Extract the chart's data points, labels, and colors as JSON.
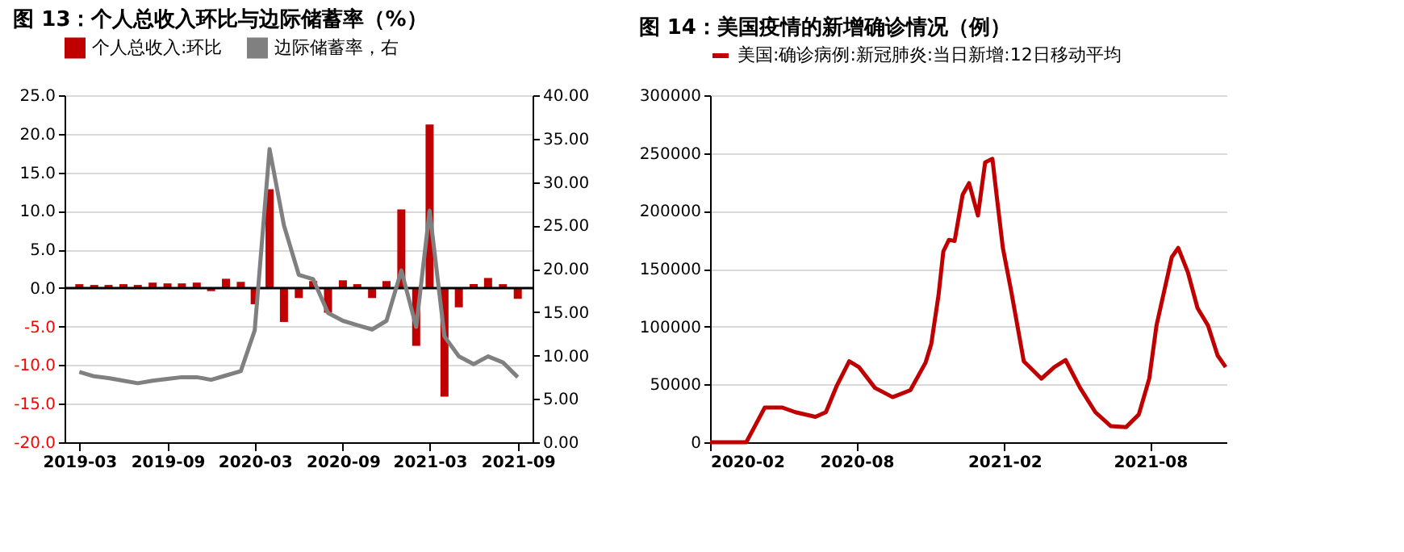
{
  "chart_data": [
    {
      "type": "bar",
      "title": "图 13：个人总收入环比与边际储蓄率（%）",
      "x": [
        "2019-03",
        "2019-04",
        "2019-05",
        "2019-06",
        "2019-07",
        "2019-08",
        "2019-09",
        "2019-10",
        "2019-11",
        "2019-12",
        "2020-01",
        "2020-02",
        "2020-03",
        "2020-04",
        "2020-05",
        "2020-06",
        "2020-07",
        "2020-08",
        "2020-09",
        "2020-10",
        "2020-11",
        "2020-12",
        "2021-01",
        "2021-02",
        "2021-03",
        "2021-04",
        "2021-05",
        "2021-06",
        "2021-07",
        "2021-08",
        "2021-09"
      ],
      "series": [
        {
          "name": "个人总收入:环比",
          "type": "bar",
          "color": "#c00000",
          "values": [
            0.5,
            0.4,
            0.4,
            0.5,
            0.4,
            0.7,
            0.6,
            0.6,
            0.7,
            -0.4,
            1.2,
            0.8,
            -2.1,
            12.8,
            -4.4,
            -1.3,
            0.9,
            -3.2,
            1.0,
            0.5,
            -1.3,
            0.9,
            10.2,
            -7.5,
            21.2,
            -14.1,
            -2.5,
            0.5,
            1.3,
            0.5,
            -1.4
          ]
        },
        {
          "name": "边际储蓄率，右",
          "type": "line",
          "axis": "y2",
          "color": "#808080",
          "values": [
            8.1,
            7.6,
            7.4,
            7.1,
            6.8,
            7.1,
            7.3,
            7.5,
            7.5,
            7.2,
            7.7,
            8.2,
            12.9,
            33.8,
            25.0,
            19.3,
            18.8,
            14.9,
            14.0,
            13.5,
            13.0,
            14.0,
            19.8,
            13.3,
            26.7,
            12.2,
            9.9,
            9.0,
            9.9,
            9.2,
            7.5
          ]
        }
      ],
      "xlim": [
        "2019-02-15",
        "2021-09-15"
      ],
      "xticks": [
        "2019-03",
        "2019-09",
        "2020-03",
        "2020-09",
        "2021-03",
        "2021-09"
      ],
      "ylim": [
        -20,
        25
      ],
      "yticks": [
        {
          "value": -20,
          "label": "-20.0"
        },
        {
          "value": -15,
          "label": "-15.0"
        },
        {
          "value": -10,
          "label": "-10.0"
        },
        {
          "value": -5,
          "label": "-5.0"
        },
        {
          "value": 0,
          "label": "0.0"
        },
        {
          "value": 5,
          "label": "5.0"
        },
        {
          "value": 10,
          "label": "10.0"
        },
        {
          "value": 15,
          "label": "15.0"
        },
        {
          "value": 20,
          "label": "20.0"
        },
        {
          "value": 25,
          "label": "25.0"
        }
      ],
      "y2lim": [
        0,
        40
      ],
      "y2ticks": [
        {
          "value": 0,
          "label": "0.00"
        },
        {
          "value": 5,
          "label": "5.00"
        },
        {
          "value": 10,
          "label": "10.00"
        },
        {
          "value": 15,
          "label": "15.00"
        },
        {
          "value": 20,
          "label": "20.00"
        },
        {
          "value": 25,
          "label": "25.00"
        },
        {
          "value": 30,
          "label": "30.00"
        },
        {
          "value": 35,
          "label": "35.00"
        },
        {
          "value": 40,
          "label": "40.00"
        }
      ],
      "ref_lines": [
        {
          "axis": "y",
          "value": 0,
          "color": "#000000"
        }
      ],
      "grid": "y",
      "legend": "top"
    },
    {
      "type": "line",
      "title": "图 14：美国疫情的新增确诊情况（例）",
      "series": [
        {
          "name": "美国:确诊病例:新冠肺炎:当日新增:12日移动平均",
          "color": "#c00000",
          "x": [
            "2020-02-01",
            "2020-03-17",
            "2020-03-27",
            "2020-04-09",
            "2020-05-01",
            "2020-05-17",
            "2020-06-11",
            "2020-06-24",
            "2020-07-07",
            "2020-07-23",
            "2020-08-04",
            "2020-08-24",
            "2020-09-15",
            "2020-10-07",
            "2020-10-26",
            "2020-11-02",
            "2020-11-11",
            "2020-11-17",
            "2020-11-24",
            "2020-12-01",
            "2020-12-11",
            "2020-12-19",
            "2020-12-30",
            "2021-01-08",
            "2021-01-17",
            "2021-01-23",
            "2021-01-30",
            "2021-02-09",
            "2021-02-25",
            "2021-03-19",
            "2021-04-04",
            "2021-04-18",
            "2021-05-06",
            "2021-05-25",
            "2021-06-13",
            "2021-07-02",
            "2021-07-18",
            "2021-07-31",
            "2021-08-09",
            "2021-08-19",
            "2021-08-28",
            "2021-09-05",
            "2021-09-17",
            "2021-09-29",
            "2021-10-12",
            "2021-10-24",
            "2021-11-03"
          ],
          "values": [
            0,
            0,
            13000,
            30000,
            30000,
            26000,
            22000,
            26000,
            48000,
            70000,
            65000,
            47000,
            39000,
            45000,
            69000,
            85000,
            127000,
            165000,
            175000,
            174000,
            214000,
            224000,
            196000,
            242000,
            245000,
            209000,
            168000,
            132000,
            70000,
            55000,
            65000,
            71000,
            47000,
            26000,
            14000,
            13000,
            24000,
            55000,
            101000,
            132000,
            160000,
            168000,
            147000,
            116000,
            101000,
            75000,
            65000
          ]
        }
      ],
      "xlim": [
        "2020-02-01",
        "2021-11-04"
      ],
      "xticks": [
        "2020-02",
        "2020-08",
        "2021-02",
        "2021-08"
      ],
      "ylim": [
        0,
        300000
      ],
      "yticks": [
        0,
        50000,
        100000,
        150000,
        200000,
        250000,
        300000
      ],
      "grid": "y",
      "legend": "top"
    }
  ]
}
